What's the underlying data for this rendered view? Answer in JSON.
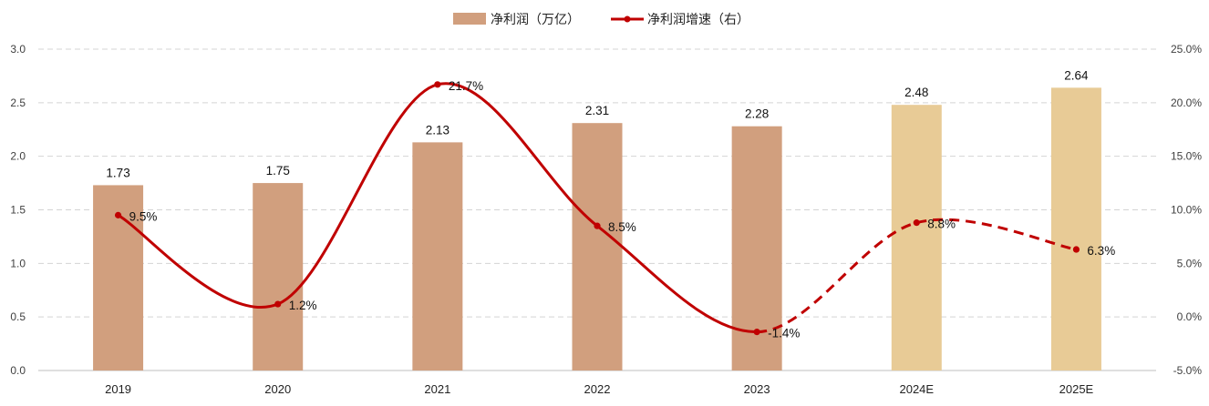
{
  "chart_data": {
    "type": "bar",
    "categories": [
      "2019",
      "2020",
      "2021",
      "2022",
      "2023",
      "2024E",
      "2025E"
    ],
    "series": [
      {
        "name": "净利润（万亿）",
        "type": "bar",
        "axis": "left",
        "values": [
          1.73,
          1.75,
          2.13,
          2.31,
          2.28,
          2.48,
          2.64
        ],
        "labels": [
          "1.73",
          "1.75",
          "2.13",
          "2.31",
          "2.28",
          "2.48",
          "2.64"
        ],
        "colors": [
          "#d19f7e",
          "#d19f7e",
          "#d19f7e",
          "#d19f7e",
          "#d19f7e",
          "#e8cb96",
          "#e8cb96"
        ]
      },
      {
        "name": "净利润增速（右）",
        "type": "line",
        "axis": "right",
        "values": [
          9.5,
          1.2,
          21.7,
          8.5,
          -1.4,
          8.8,
          6.3
        ],
        "labels": [
          "9.5%",
          "1.2%",
          "21.7%",
          "8.5%",
          "-1.4%",
          "8.8%",
          "6.3%"
        ],
        "color": "#c00000",
        "dashed_from_index": 4
      }
    ],
    "left_axis": {
      "ylim": [
        0,
        3.0
      ],
      "ticks": [
        0,
        0.5,
        1.0,
        1.5,
        2.0,
        2.5,
        3.0
      ],
      "tick_labels": [
        "0.0",
        "0.5",
        "1.0",
        "1.5",
        "2.0",
        "2.5",
        "3.0"
      ]
    },
    "right_axis": {
      "ylim": [
        -5,
        25
      ],
      "ticks": [
        -5,
        0,
        5,
        10,
        15,
        20,
        25
      ],
      "tick_labels": [
        "-5.0%",
        "0.0%",
        "5.0%",
        "10.0%",
        "15.0%",
        "20.0%",
        "25.0%"
      ]
    },
    "grid": "horizontal-dashed",
    "legend_position": "top-center"
  }
}
